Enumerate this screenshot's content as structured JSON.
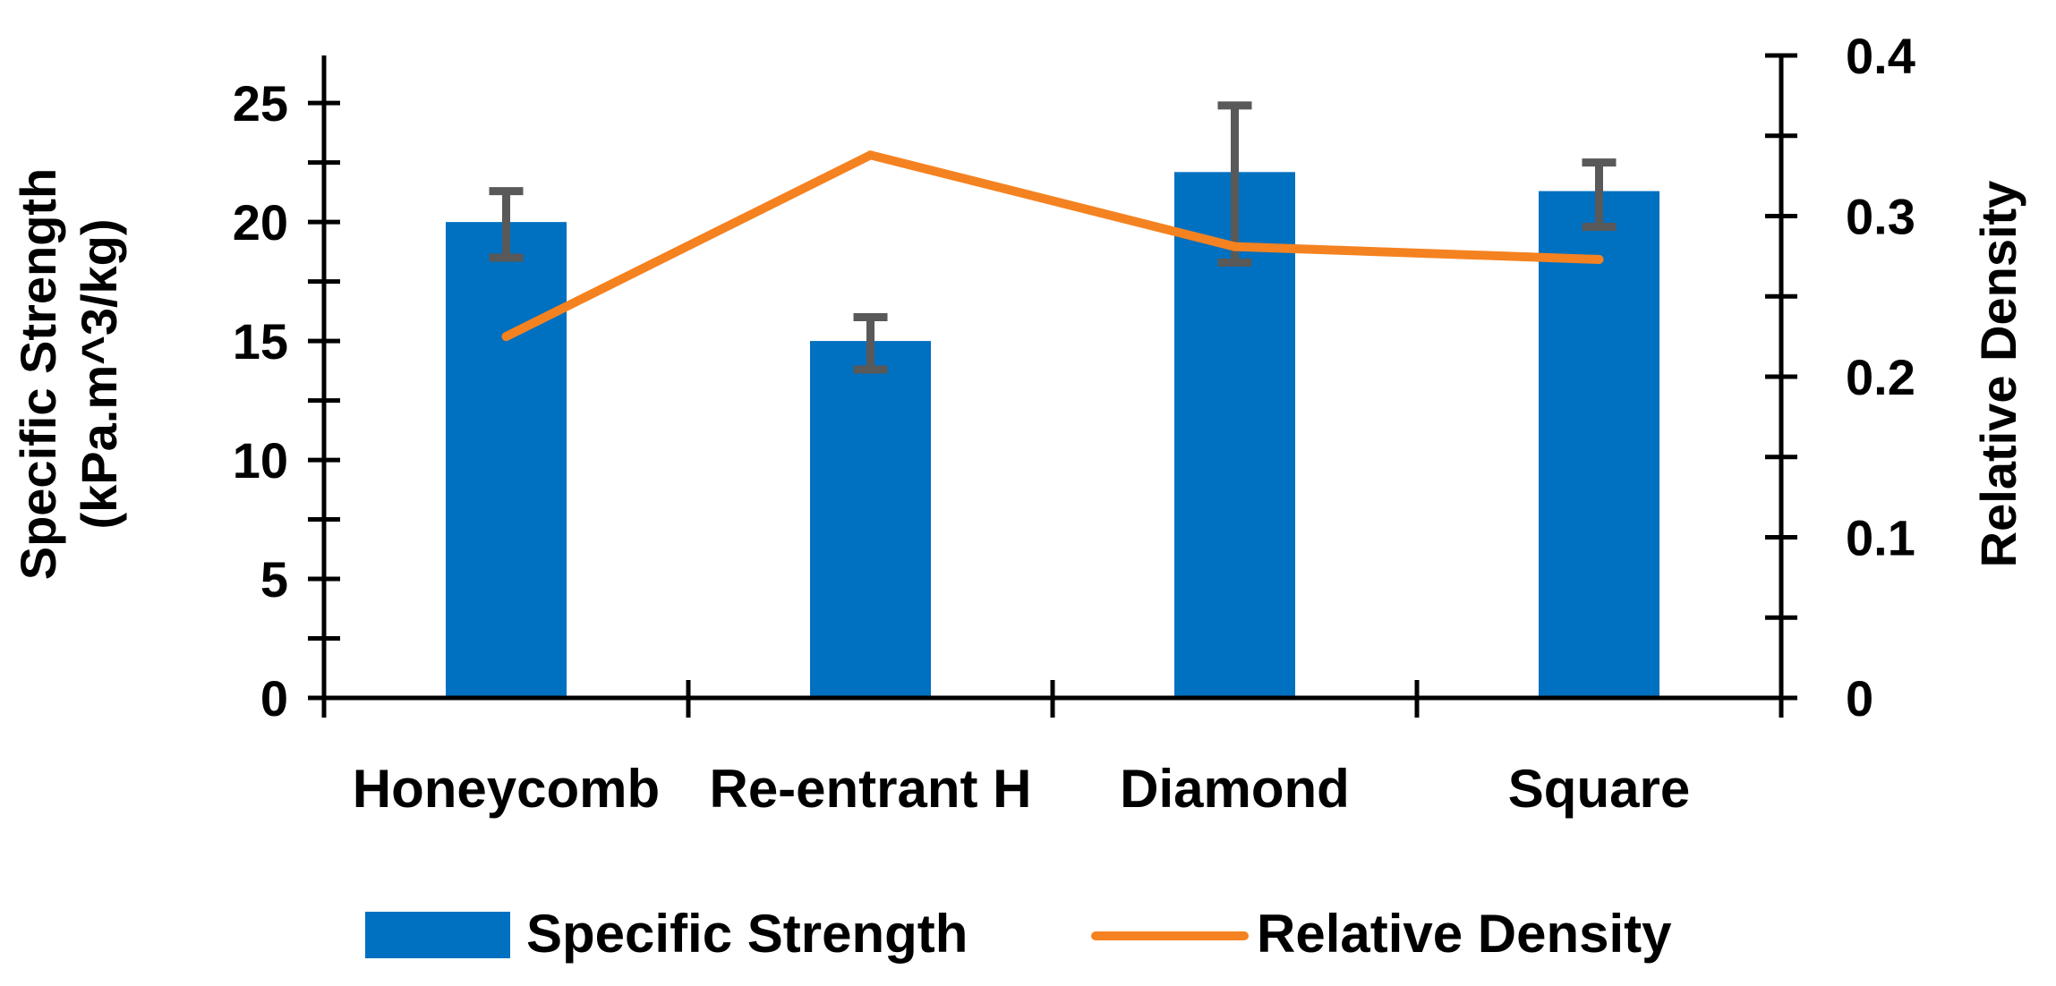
{
  "chart_data": {
    "type": "bar",
    "categories": [
      "Honeycomb",
      "Re-entrant H",
      "Diamond",
      "Square"
    ],
    "series": [
      {
        "name": "Specific Strength",
        "type": "bar",
        "axis": "left",
        "values": [
          20.0,
          15.0,
          22.1,
          21.3
        ],
        "error_low": [
          1.5,
          1.2,
          3.8,
          1.5
        ],
        "error_high": [
          1.3,
          1.0,
          2.8,
          1.2
        ],
        "color": "#0070C0"
      },
      {
        "name": "Relative Density",
        "type": "line",
        "axis": "right",
        "values": [
          0.225,
          0.338,
          0.281,
          0.273
        ],
        "color": "#F58220"
      }
    ],
    "y_left": {
      "label_line1": "Specific Strength",
      "label_line2": "(kPa.m^3/kg)",
      "ylim": [
        0,
        27
      ],
      "ticks": [
        0,
        5,
        10,
        15,
        20,
        25
      ],
      "tick_labels": [
        "0",
        "5",
        "10",
        "15",
        "20",
        "25"
      ]
    },
    "y_right": {
      "label": "Relative Density",
      "ylim": [
        0,
        0.4
      ],
      "ticks": [
        0,
        0.1,
        0.2,
        0.3,
        0.4
      ],
      "tick_labels": [
        "0",
        "0.1",
        "0.2",
        "0.3",
        "0.4"
      ]
    },
    "legend_position": "bottom",
    "error_bar_color": "#595959",
    "axis_color": "#000000"
  }
}
